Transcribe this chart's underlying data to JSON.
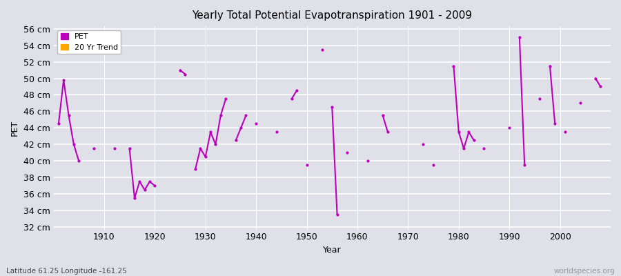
{
  "title": "Yearly Total Potential Evapotranspiration 1901 - 2009",
  "xlabel": "Year",
  "ylabel": "PET",
  "footnote_left": "Latitude 61.25 Longitude -161.25",
  "footnote_right": "worldspecies.org",
  "ylim": [
    32,
    56
  ],
  "yticks": [
    32,
    34,
    36,
    38,
    40,
    42,
    44,
    46,
    48,
    50,
    52,
    54,
    56
  ],
  "ytick_labels": [
    "32 cm",
    "34 cm",
    "36 cm",
    "38 cm",
    "40 cm",
    "42 cm",
    "44 cm",
    "46 cm",
    "48 cm",
    "50 cm",
    "52 cm",
    "54 cm",
    "56 cm"
  ],
  "xlim": [
    1900,
    2010
  ],
  "background_color": "#dfe0e8",
  "plot_bg_color": "#dfe0e8",
  "grid_color": "#ffffff",
  "line_color": "#bb00bb",
  "legend_pet_color": "#bb00bb",
  "legend_trend_color": "#ffa500",
  "pet_segments": [
    [
      [
        1901,
        44.5
      ],
      [
        1902,
        49.8
      ],
      [
        1903,
        45.5
      ],
      [
        1904,
        42.0
      ],
      [
        1905,
        40.0
      ]
    ],
    [
      [
        1908,
        41.5
      ]
    ],
    [
      [
        1912,
        41.5
      ]
    ],
    [
      [
        1915,
        41.5
      ],
      [
        1916,
        35.5
      ],
      [
        1917,
        37.5
      ],
      [
        1918,
        36.5
      ],
      [
        1919,
        37.5
      ],
      [
        1920,
        37.0
      ]
    ],
    [
      [
        1925,
        51.0
      ],
      [
        1926,
        50.5
      ]
    ],
    [
      [
        1928,
        39.0
      ],
      [
        1929,
        41.5
      ],
      [
        1930,
        40.5
      ],
      [
        1931,
        43.5
      ],
      [
        1932,
        42.0
      ],
      [
        1933,
        45.5
      ],
      [
        1934,
        47.5
      ]
    ],
    [
      [
        1936,
        42.5
      ],
      [
        1937,
        44.0
      ],
      [
        1938,
        45.5
      ]
    ],
    [
      [
        1940,
        44.5
      ]
    ],
    [
      [
        1944,
        43.5
      ]
    ],
    [
      [
        1947,
        47.5
      ],
      [
        1948,
        48.5
      ]
    ],
    [
      [
        1950,
        39.5
      ]
    ],
    [
      [
        1953,
        53.5
      ]
    ],
    [
      [
        1955,
        46.5
      ],
      [
        1956,
        33.5
      ]
    ],
    [
      [
        1958,
        41.0
      ]
    ],
    [
      [
        1962,
        40.0
      ]
    ],
    [
      [
        1965,
        45.5
      ],
      [
        1966,
        43.5
      ]
    ],
    [
      [
        1973,
        42.0
      ]
    ],
    [
      [
        1975,
        39.5
      ]
    ],
    [
      [
        1979,
        51.5
      ],
      [
        1980,
        43.5
      ],
      [
        1981,
        41.5
      ],
      [
        1982,
        43.5
      ],
      [
        1983,
        42.5
      ]
    ],
    [
      [
        1985,
        41.5
      ]
    ],
    [
      [
        1990,
        44.0
      ]
    ],
    [
      [
        1992,
        55.0
      ],
      [
        1993,
        39.5
      ]
    ],
    [
      [
        1996,
        47.5
      ]
    ],
    [
      [
        1998,
        51.5
      ],
      [
        1999,
        44.5
      ]
    ],
    [
      [
        2001,
        43.5
      ]
    ],
    [
      [
        2004,
        47.0
      ]
    ],
    [
      [
        2007,
        50.0
      ],
      [
        2008,
        49.0
      ]
    ]
  ]
}
